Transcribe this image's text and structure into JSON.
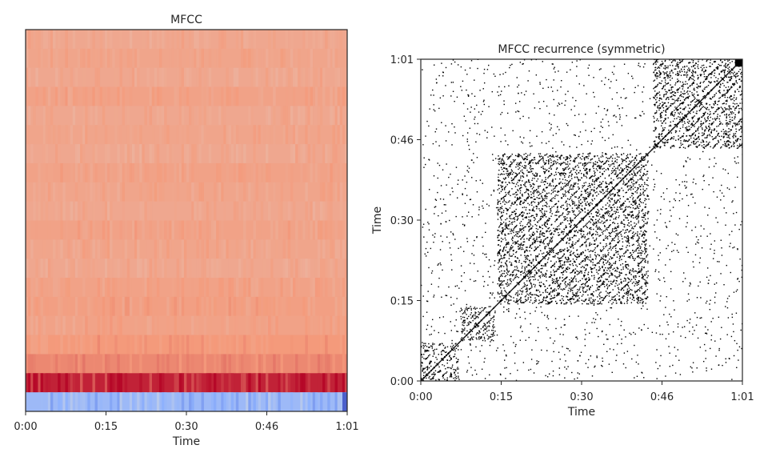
{
  "chart_data": [
    {
      "type": "heatmap",
      "title": "MFCC",
      "xlabel": "Time",
      "ylabel": "",
      "x_range_seconds": [
        0,
        61
      ],
      "x_tick_labels": [
        "0:00",
        "0:15",
        "0:30",
        "0:46",
        "1:01"
      ],
      "y_tick_labels": [],
      "n_coefficients": 20,
      "colormap": "coolwarm",
      "colors": {
        "low": "#3b4cc0",
        "mid": "#dddddd",
        "high": "#b40426"
      },
      "bands_top_to_bottom": [
        0.7,
        0.71,
        0.7,
        0.72,
        0.7,
        0.71,
        0.7,
        0.72,
        0.71,
        0.7,
        0.72,
        0.71,
        0.7,
        0.72,
        0.73,
        0.72,
        0.75,
        0.78,
        0.95,
        0.3
      ],
      "grid": false
    },
    {
      "type": "heatmap",
      "title": "MFCC recurrence (symmetric)",
      "xlabel": "Time",
      "ylabel": "Time",
      "x_range_seconds": [
        0,
        61
      ],
      "y_range_seconds": [
        0,
        61
      ],
      "x_tick_labels": [
        "0:00",
        "0:15",
        "0:30",
        "0:46",
        "1:01"
      ],
      "y_tick_labels": [
        "0:00",
        "0:15",
        "0:30",
        "0:46",
        "1:01"
      ],
      "colormap": "gray_r",
      "colors": {
        "recurrent": "#000000",
        "background": "#ffffff"
      },
      "dense_blocks_seconds": [
        [
          0,
          7
        ],
        [
          7.5,
          14
        ],
        [
          14.5,
          43
        ],
        [
          44,
          61
        ]
      ],
      "grid": false
    }
  ]
}
